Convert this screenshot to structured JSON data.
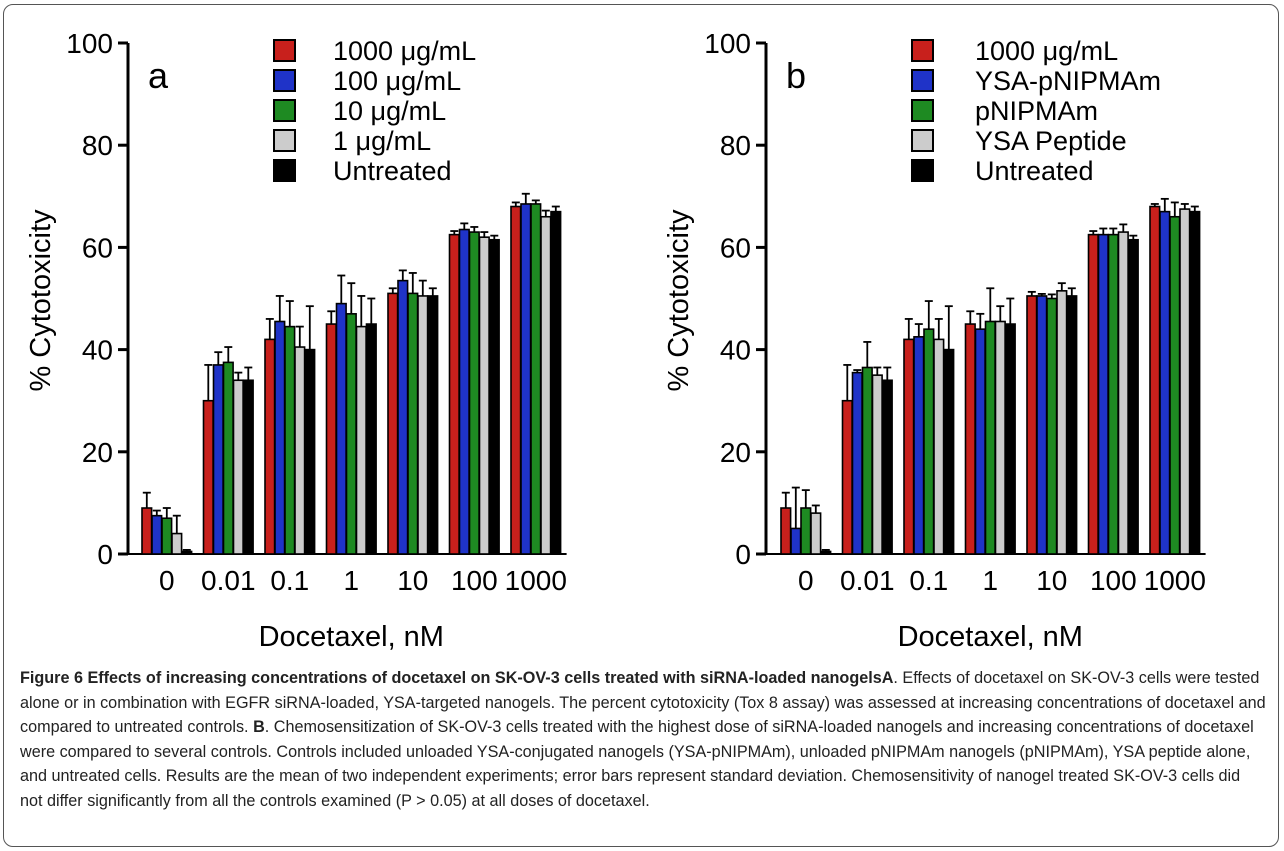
{
  "chart_data": [
    {
      "type": "bar",
      "panel_label": "a",
      "categories": [
        "0",
        "0.01",
        "0.1",
        "1",
        "10",
        "100",
        "1000"
      ],
      "xlabel": "Docetaxel, nM",
      "ylabel": "% Cytotoxicity",
      "ylim": [
        0,
        100
      ],
      "yticks": [
        "0",
        "20",
        "40",
        "60",
        "80",
        "100"
      ],
      "legend_position": "top-center",
      "series": [
        {
          "name": "1000 μg/mL",
          "color": "#c8201c",
          "values": [
            9,
            30,
            42,
            45,
            51,
            62.5,
            68
          ],
          "errors": [
            3,
            7,
            4,
            2.5,
            1,
            0.7,
            0.8
          ]
        },
        {
          "name": "100 μg/mL",
          "color": "#1f33c8",
          "values": [
            7.5,
            37,
            45.5,
            49,
            53.5,
            63.5,
            68.5
          ],
          "errors": [
            1,
            2.5,
            5,
            5.5,
            2,
            1.2,
            2
          ]
        },
        {
          "name": "10 μg/mL",
          "color": "#1e8a22",
          "values": [
            7,
            37.5,
            44.5,
            47,
            51,
            63,
            68.5
          ],
          "errors": [
            2,
            3,
            5,
            6,
            4,
            1,
            0.7
          ]
        },
        {
          "name": "1 μg/mL",
          "color": "#cccccc",
          "values": [
            4,
            34,
            40.5,
            44.5,
            50.5,
            62,
            66
          ],
          "errors": [
            3.5,
            1.5,
            4,
            6,
            3,
            1,
            1.2
          ]
        },
        {
          "name": "Untreated",
          "color": "#000000",
          "values": [
            0.5,
            34,
            40,
            45,
            50.5,
            61.5,
            67
          ],
          "errors": [
            0.3,
            2.5,
            8.5,
            5,
            1.5,
            0.8,
            1
          ]
        }
      ]
    },
    {
      "type": "bar",
      "panel_label": "b",
      "categories": [
        "0",
        "0.01",
        "0.1",
        "1",
        "10",
        "100",
        "1000"
      ],
      "xlabel": "Docetaxel, nM",
      "ylabel": "% Cytotoxicity",
      "ylim": [
        0,
        100
      ],
      "yticks": [
        "0",
        "20",
        "40",
        "60",
        "80",
        "100"
      ],
      "legend_position": "top-center",
      "series": [
        {
          "name": "1000 μg/mL",
          "color": "#c8201c",
          "values": [
            9,
            30,
            42,
            45,
            50.5,
            62.5,
            68
          ],
          "errors": [
            3,
            7,
            4,
            2.5,
            0.8,
            0.7,
            0.5
          ]
        },
        {
          "name": "YSA-pNIPMAm",
          "color": "#1f33c8",
          "values": [
            5,
            35.5,
            42.5,
            44,
            50.5,
            62.5,
            67
          ],
          "errors": [
            8,
            0.5,
            2.5,
            3,
            0.4,
            1.2,
            2.5
          ]
        },
        {
          "name": "pNIPMAm",
          "color": "#1e8a22",
          "values": [
            9,
            36.5,
            44,
            45.5,
            50,
            62.5,
            66
          ],
          "errors": [
            3.5,
            5,
            5.5,
            6.5,
            0.8,
            1.2,
            2.8
          ]
        },
        {
          "name": "YSA Peptide",
          "color": "#cccccc",
          "values": [
            8,
            35,
            42,
            45.5,
            51.5,
            63,
            67.5
          ],
          "errors": [
            1.5,
            1.5,
            4,
            3,
            1.5,
            1.5,
            1
          ]
        },
        {
          "name": "Untreated",
          "color": "#000000",
          "values": [
            0.5,
            34,
            40,
            45,
            50.5,
            61.5,
            67
          ],
          "errors": [
            0.3,
            2.5,
            8.5,
            5,
            1.5,
            0.8,
            1
          ]
        }
      ]
    }
  ],
  "caption": {
    "title": "Figure 6 Effects of increasing concentrations of docetaxel on SK-OV-3 cells treated with siRNA-loaded nanogels",
    "label_a": "A",
    "text_a": ". Effects of docetaxel on SK-OV-3 cells were tested alone or in combination with EGFR siRNA-loaded, YSA-targeted nanogels. The percent cytotoxicity (Tox 8 assay) was assessed at increasing concentrations of docetaxel and compared to untreated controls. ",
    "label_b": "B",
    "text_b": ". Chemosensitization of SK-OV-3 cells treated with the highest dose of siRNA-loaded nanogels and increasing concentrations of docetaxel were compared to several controls. Controls included unloaded YSA-conjugated nanogels (YSA-pNIPMAm), unloaded pNIPMAm nanogels (pNIPMAm), YSA peptide alone, and untreated cells. Results are the mean of two independent experiments; error bars represent standard deviation. Chemosensitivity of nanogel treated SK-OV-3 cells did not differ significantly from all the controls examined (P > 0.05) at all doses of docetaxel."
  }
}
